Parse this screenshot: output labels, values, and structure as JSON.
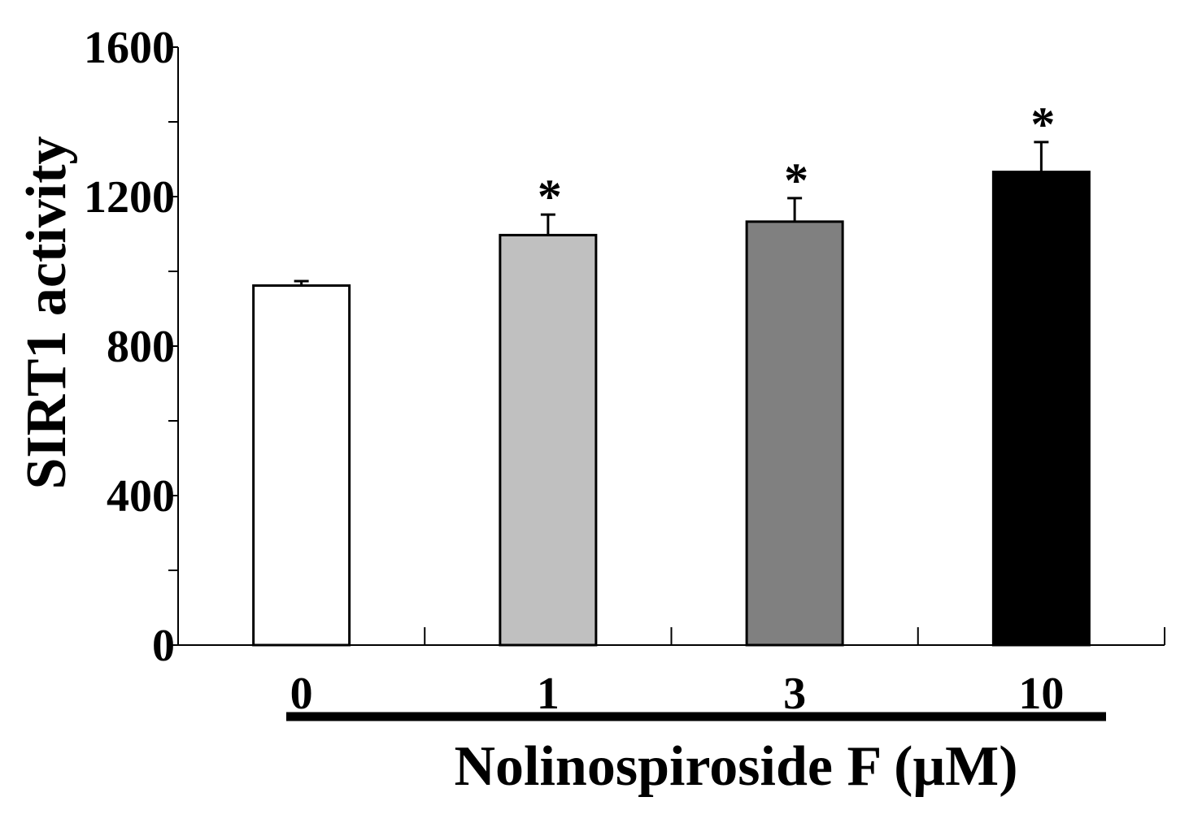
{
  "chart_data": {
    "type": "bar",
    "title": "",
    "categories": [
      "0",
      "1",
      "3",
      "10"
    ],
    "values": [
      962,
      1097,
      1133,
      1266
    ],
    "errors": [
      12,
      55,
      63,
      80
    ],
    "significance": [
      "",
      "*",
      "*",
      "*"
    ],
    "bar_colors": [
      "#ffffff",
      "#c0c0c0",
      "#808080",
      "#000000"
    ],
    "ylabel": "SIRT1 activity",
    "xlabel": "Nolinospiroside F (μM)",
    "ylim": [
      0,
      1600
    ],
    "y_major_ticks": [
      0,
      400,
      800,
      1200,
      1600
    ],
    "y_minor_ticks": [
      200,
      600,
      1000,
      1400
    ],
    "grid": false,
    "legend": "none"
  }
}
